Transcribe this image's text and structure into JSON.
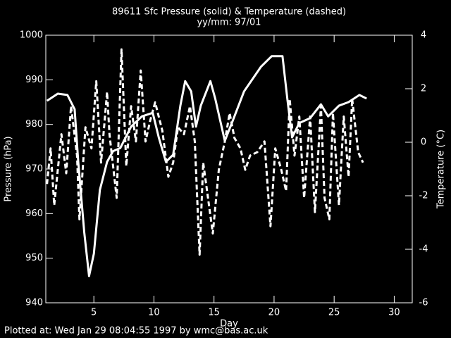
{
  "chart_data": {
    "type": "line",
    "title": "89611 Sfc Pressure (solid) & Temperature (dashed)",
    "subtitle": "yy/mm: 97/01",
    "x_label": "Day",
    "y_label": "Pressure (hPa)",
    "y2_label": "Temperature (°C)",
    "footer": "Plotted at: Wed Jan 29 08:04:55 1997 by wmc@bas.ac.uk",
    "xlim": [
      1,
      31.5
    ],
    "xticks": [
      5,
      10,
      15,
      20,
      25,
      30
    ],
    "ylim": [
      940,
      1000
    ],
    "yticks": [
      940,
      950,
      960,
      970,
      980,
      990,
      1000
    ],
    "y2lim": [
      -6,
      4
    ],
    "y2ticks": [
      -6,
      -4,
      -2,
      0,
      2,
      4
    ],
    "series": [
      {
        "color": "#ffffff",
        "dashed": false,
        "x": [
          1.1,
          2.0,
          2.8,
          3.4,
          3.7,
          4.2,
          4.6,
          5.0,
          5.5,
          6.1,
          6.6,
          7.2,
          8.1,
          9.0,
          9.9,
          10.4,
          11.0,
          11.6,
          12.2,
          12.6,
          13.1,
          13.5,
          13.9,
          14.7,
          15.1,
          15.9,
          16.6,
          17.5,
          18.9,
          19.8,
          20.7,
          21.1,
          21.5,
          22.1,
          23.0,
          23.9,
          24.5,
          25.4,
          26.2,
          27.1,
          27.7
        ],
        "values": [
          985.3,
          986.9,
          986.6,
          983.4,
          971.6,
          955.8,
          946,
          951,
          965.3,
          971.6,
          974,
          974.7,
          979.5,
          981.8,
          982.6,
          977.1,
          971.6,
          973.2,
          984.2,
          989.7,
          987.4,
          979.5,
          984.2,
          989.7,
          985.8,
          976.3,
          981.1,
          987.4,
          992.9,
          995.3,
          995.3,
          985.8,
          977.1,
          980.3,
          981.4,
          984.5,
          981.8,
          984.2,
          985,
          986.6,
          985.8
        ]
      },
      {
        "color": "#ffffff",
        "dashed": true,
        "axis": "y2",
        "x": [
          1.1,
          1.4,
          1.7,
          2.3,
          2.7,
          3.1,
          3.6,
          3.8,
          4.3,
          4.8,
          5.2,
          5.6,
          6.1,
          6.3,
          6.9,
          7.3,
          7.7,
          8.1,
          8.5,
          8.9,
          9.3,
          9.7,
          10.1,
          10.7,
          11.2,
          11.6,
          12.0,
          12.5,
          13.0,
          13.4,
          13.8,
          14.1,
          14.5,
          14.9,
          15.4,
          15.9,
          16.3,
          16.7,
          17.2,
          17.6,
          18.0,
          18.6,
          19.2,
          19.7,
          20.1,
          20.6,
          21.0,
          21.3,
          21.7,
          22.1,
          22.5,
          23.0,
          23.4,
          23.9,
          24.2,
          24.6,
          24.9,
          25.4,
          25.8,
          26.2,
          26.5,
          27.0,
          27.4
        ],
        "values": [
          -1.56,
          -0.23,
          -2.35,
          0.3,
          -1.16,
          1.35,
          -0.5,
          -2.88,
          0.56,
          -0.23,
          2.28,
          -0.76,
          1.88,
          0.3,
          -2.08,
          3.47,
          -0.89,
          1.35,
          0.03,
          2.68,
          0.03,
          0.83,
          1.49,
          0.43,
          -1.29,
          -0.76,
          0.56,
          0.3,
          1.35,
          0.03,
          -4.2,
          -0.76,
          -2.08,
          -3.41,
          -1.03,
          0.03,
          1.09,
          0.16,
          -0.23,
          -1.03,
          -0.5,
          -0.37,
          0.03,
          -3.14,
          -0.23,
          -1.03,
          -1.82,
          1.62,
          -0.5,
          0.96,
          -2.08,
          0.96,
          -2.61,
          1.35,
          -2.08,
          -2.88,
          1.09,
          -2.35,
          0.96,
          -1.29,
          1.62,
          -0.37,
          -0.76
        ]
      }
    ]
  }
}
